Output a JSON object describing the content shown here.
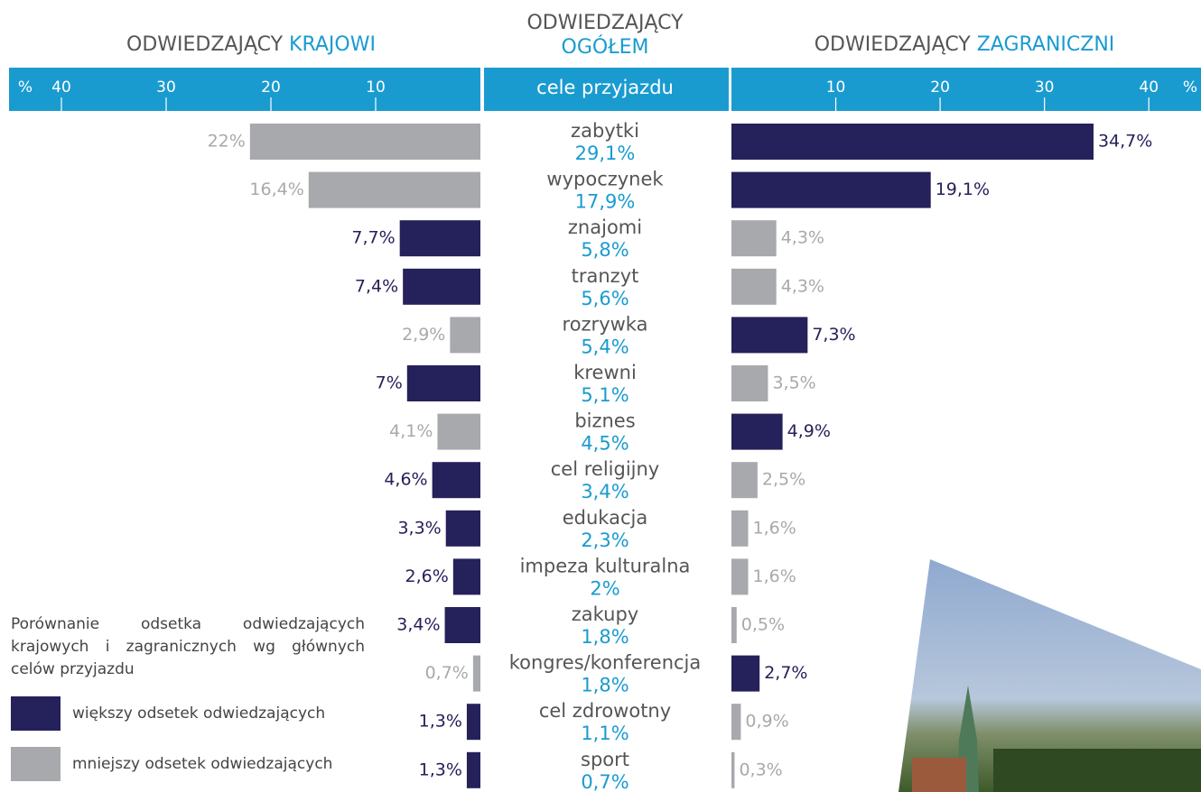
{
  "chart_data": {
    "type": "butterfly",
    "left_title": [
      "ODWIEDZAJĄCY",
      "KRAJOWI"
    ],
    "center_title": [
      "ODWIEDZAJĄCY",
      "OGÓŁEM"
    ],
    "right_title": [
      "ODWIEDZAJĄCY",
      "ZAGRANICZNI"
    ],
    "center_header": "cele przyjazdu",
    "unit": "%",
    "caption": "Porównanie odsetka odwiedzających krajowych i zagranicznych wg głównych celów przyjazdu",
    "categories": [
      "zabytki",
      "wypoczynek",
      "znajomi",
      "tranzyt",
      "rozrywka",
      "krewni",
      "biznes",
      "cel religijny",
      "edukacja",
      "impeza kulturalna",
      "zakupy",
      "kongres/konferencja",
      "cel zdrowotny",
      "sport"
    ],
    "total": {
      "values": [
        29.1,
        17.9,
        5.8,
        5.6,
        5.4,
        5.1,
        4.5,
        3.4,
        2.3,
        2,
        1.8,
        1.8,
        1.1,
        0.7
      ],
      "value_labels": [
        "29,1%",
        "17,9%",
        "5,8%",
        "5,6%",
        "5,4%",
        "5,1%",
        "4,5%",
        "3,4%",
        "2,3%",
        "2%",
        "1,8%",
        "1,8%",
        "1,1%",
        "0,7%"
      ]
    },
    "series": [
      {
        "side": "left",
        "values": [
          22,
          16.4,
          7.7,
          7.4,
          2.9,
          7,
          4.1,
          4.6,
          3.3,
          2.6,
          3.4,
          0.7,
          1.3,
          1.3
        ],
        "value_labels": [
          "22%",
          "16,4%",
          "7,7%",
          "7,4%",
          "2,9%",
          "7%",
          "4,1%",
          "4,6%",
          "3,3%",
          "2,6%",
          "3,4%",
          "0,7%",
          "1,3%",
          "1,3%"
        ]
      },
      {
        "side": "right",
        "values": [
          34.7,
          19.1,
          4.3,
          4.3,
          7.3,
          3.5,
          4.9,
          2.5,
          1.6,
          1.6,
          0.5,
          2.7,
          0.9,
          0.3
        ],
        "value_labels": [
          "34,7%",
          "19,1%",
          "4,3%",
          "4,3%",
          "7,3%",
          "3,5%",
          "4,9%",
          "2,5%",
          "1,6%",
          "1,6%",
          "0,5%",
          "2,7%",
          "0,9%",
          "0,3%"
        ]
      }
    ],
    "legend": [
      {
        "label": "większy odsetek odwiedzających",
        "color": "#25215a"
      },
      {
        "label": "mniejszy odsetek odwiedzających",
        "color": "#a7a9ac"
      }
    ],
    "xlim": [
      0,
      45
    ],
    "xticks": [
      10,
      20,
      30,
      40
    ],
    "accent_color": "#1a9bd0"
  }
}
